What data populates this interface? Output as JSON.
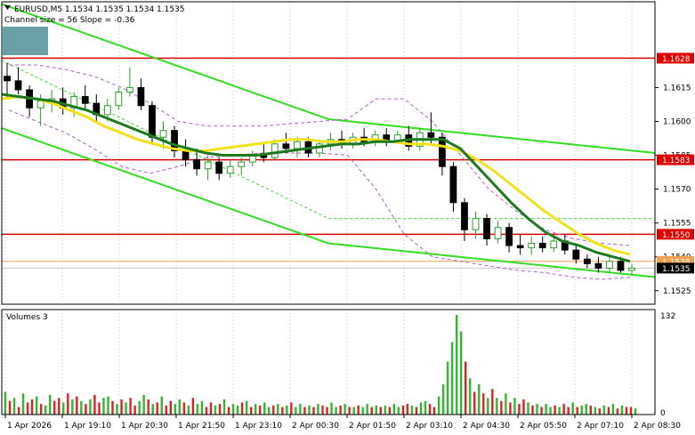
{
  "header": {
    "symbol_line": "EURUSD,M5  1.1534 1.1535 1.1534 1.1535",
    "indicator_line": "Channel size = 56 Slope = -0.36",
    "volumes_label": "Volumes 3"
  },
  "colors": {
    "bull": "#2f9e2f",
    "bear": "#000000",
    "ma_fast": "#1e7a1e",
    "ma_slow": "#f2e21a",
    "channel": "#33dd22",
    "bands": "#b060d0",
    "level": "#dd0000",
    "bid": "#f0a050",
    "vol_up": "#2fb82f",
    "vol_down": "#e02020"
  },
  "chart_data": [
    {
      "type": "candlestick",
      "symbol": "EURUSD",
      "timeframe": "M5",
      "ylim": [
        1.1519,
        1.1653
      ],
      "yticks": [
        "1.1615",
        "1.1600",
        "1.1585",
        "1.1570",
        "1.1555",
        "1.1540",
        "1.1525"
      ],
      "xticks": [
        "1 Apr 2026",
        "1 Apr 19:10",
        "1 Apr 20:30",
        "1 Apr 21:50",
        "1 Apr 23:10",
        "2 Apr 00:30",
        "2 Apr 01:50",
        "2 Apr 03:10",
        "2 Apr 04:30",
        "2 Apr 05:50",
        "2 Apr 07:10",
        "2 Apr 08:30"
      ],
      "levels": [
        {
          "price": 1.1628,
          "label": "1.1628"
        },
        {
          "price": 1.1583,
          "label": "1.1583"
        },
        {
          "price": 1.155,
          "label": "1.1550"
        },
        {
          "price": 1.1538,
          "label": "1.1538"
        },
        {
          "price": 1.1535,
          "label": "1.1535"
        }
      ],
      "ohlc": [
        [
          1.162,
          1.1626,
          1.161,
          1.1618
        ],
        [
          1.1618,
          1.1624,
          1.1612,
          1.1614
        ],
        [
          1.1614,
          1.1616,
          1.1602,
          1.1606
        ],
        [
          1.1606,
          1.1612,
          1.1598,
          1.1609
        ],
        [
          1.1609,
          1.1614,
          1.1604,
          1.161
        ],
        [
          1.161,
          1.1615,
          1.1603,
          1.1606
        ],
        [
          1.1606,
          1.1613,
          1.1602,
          1.1611
        ],
        [
          1.1611,
          1.1616,
          1.1605,
          1.1608
        ],
        [
          1.1608,
          1.1612,
          1.16,
          1.1603
        ],
        [
          1.1603,
          1.161,
          1.16,
          1.1607
        ],
        [
          1.1607,
          1.1615,
          1.1605,
          1.1613
        ],
        [
          1.1613,
          1.1624,
          1.1611,
          1.1615
        ],
        [
          1.1615,
          1.1619,
          1.1605,
          1.1607
        ],
        [
          1.1607,
          1.1609,
          1.159,
          1.1593
        ],
        [
          1.1593,
          1.16,
          1.1588,
          1.1596
        ],
        [
          1.1596,
          1.1598,
          1.1584,
          1.1587
        ],
        [
          1.1587,
          1.1592,
          1.158,
          1.1583
        ],
        [
          1.1583,
          1.1588,
          1.1576,
          1.1579
        ],
        [
          1.1579,
          1.1585,
          1.1574,
          1.1582
        ],
        [
          1.1582,
          1.1584,
          1.1574,
          1.1577
        ],
        [
          1.1577,
          1.1583,
          1.1575,
          1.158
        ],
        [
          1.158,
          1.1584,
          1.1576,
          1.1582
        ],
        [
          1.1582,
          1.1587,
          1.158,
          1.1585
        ],
        [
          1.1585,
          1.159,
          1.1582,
          1.1584
        ],
        [
          1.1584,
          1.1592,
          1.1583,
          1.159
        ],
        [
          1.159,
          1.1595,
          1.1586,
          1.1588
        ],
        [
          1.1588,
          1.1593,
          1.1584,
          1.1591
        ],
        [
          1.1591,
          1.1593,
          1.1584,
          1.1586
        ],
        [
          1.1586,
          1.1592,
          1.1584,
          1.159
        ],
        [
          1.159,
          1.1595,
          1.1587,
          1.1592
        ],
        [
          1.1592,
          1.1596,
          1.1588,
          1.159
        ],
        [
          1.159,
          1.1595,
          1.1588,
          1.1593
        ],
        [
          1.1593,
          1.1597,
          1.1589,
          1.1591
        ],
        [
          1.1591,
          1.1596,
          1.1589,
          1.1594
        ],
        [
          1.1594,
          1.1597,
          1.1589,
          1.1591
        ],
        [
          1.1591,
          1.1596,
          1.159,
          1.1594
        ],
        [
          1.1594,
          1.1598,
          1.1587,
          1.1589
        ],
        [
          1.1589,
          1.1597,
          1.1587,
          1.1595
        ],
        [
          1.1595,
          1.1604,
          1.159,
          1.1593
        ],
        [
          1.1593,
          1.1595,
          1.1576,
          1.158
        ],
        [
          1.158,
          1.1582,
          1.156,
          1.1564
        ],
        [
          1.1564,
          1.1566,
          1.1547,
          1.1552
        ],
        [
          1.1552,
          1.156,
          1.1548,
          1.1557
        ],
        [
          1.1557,
          1.1559,
          1.1545,
          1.1548
        ],
        [
          1.1548,
          1.1556,
          1.1546,
          1.1553
        ],
        [
          1.1553,
          1.1555,
          1.1542,
          1.1545
        ],
        [
          1.1545,
          1.155,
          1.1541,
          1.1544
        ],
        [
          1.1544,
          1.1549,
          1.1541,
          1.1546
        ],
        [
          1.1546,
          1.1549,
          1.1542,
          1.1544
        ],
        [
          1.1544,
          1.1549,
          1.1542,
          1.1547
        ],
        [
          1.1547,
          1.155,
          1.1541,
          1.1543
        ],
        [
          1.1543,
          1.1546,
          1.1537,
          1.1539
        ],
        [
          1.1539,
          1.1541,
          1.1535,
          1.1537
        ],
        [
          1.1537,
          1.154,
          1.1533,
          1.1535
        ],
        [
          1.1535,
          1.154,
          1.1533,
          1.1538
        ],
        [
          1.1538,
          1.154,
          1.1533,
          1.1534
        ],
        [
          1.1534,
          1.1537,
          1.1532,
          1.1535
        ]
      ],
      "ma_fast": [
        1.1612,
        1.1611,
        1.161,
        1.1609,
        1.1607,
        1.1605,
        1.1602,
        1.1599,
        1.1596,
        1.1593,
        1.159,
        1.1588,
        1.1586,
        1.1585,
        1.1585,
        1.1585,
        1.1586,
        1.1587,
        1.1588,
        1.1589,
        1.159,
        1.159,
        1.1591,
        1.1591,
        1.1592,
        1.1592,
        1.1592,
        1.1588,
        1.158,
        1.1572,
        1.1564,
        1.1557,
        1.1551,
        1.1547,
        1.1545,
        1.1542,
        1.154,
        1.1538
      ],
      "ma_slow": [
        1.161,
        1.1611,
        1.161,
        1.1608,
        1.1605,
        1.1602,
        1.1598,
        1.1595,
        1.1592,
        1.159,
        1.1588,
        1.1587,
        1.1587,
        1.1588,
        1.1589,
        1.159,
        1.1591,
        1.1592,
        1.1592,
        1.1591,
        1.1591,
        1.1592,
        1.1592,
        1.1591,
        1.159,
        1.159,
        1.1589,
        1.1587,
        1.1583,
        1.1578,
        1.1572,
        1.1566,
        1.156,
        1.1555,
        1.155,
        1.1546,
        1.1543,
        1.1541
      ],
      "channel": {
        "upper": [
          1.1652,
          1.1601,
          1.1586
        ],
        "lower": [
          1.1597,
          1.1546,
          1.1531
        ],
        "middle": [
          1.1627,
          1.1557,
          1.1557
        ]
      },
      "bands": {
        "upper": [
          1.1625,
          1.1625,
          1.1623,
          1.162,
          1.1615,
          1.1608,
          1.16,
          1.1598,
          1.1598,
          1.1598,
          1.1599,
          1.16,
          1.1601,
          1.161,
          1.161,
          1.16,
          1.1585,
          1.157,
          1.156,
          1.1552,
          1.1548,
          1.1546,
          1.1545
        ],
        "lower": [
          1.1605,
          1.16,
          1.1595,
          1.1588,
          1.158,
          1.1577,
          1.158,
          1.1584,
          1.1585,
          1.1586,
          1.1586,
          1.1586,
          1.1585,
          1.157,
          1.155,
          1.154,
          1.1538,
          1.1536,
          1.1534,
          1.1533,
          1.1531,
          1.153,
          1.1531
        ]
      }
    },
    {
      "type": "bar",
      "name": "Volumes 3",
      "ylim": [
        0,
        132
      ],
      "yticks": [
        "132",
        "0"
      ],
      "values": [
        30,
        18,
        22,
        10,
        28,
        16,
        20,
        24,
        14,
        12,
        26,
        18,
        22,
        16,
        28,
        20,
        24,
        18,
        14,
        20,
        26,
        16,
        22,
        24,
        18,
        14,
        20,
        16,
        22,
        12,
        18,
        26,
        20,
        14,
        16,
        24,
        12,
        18,
        14,
        20,
        16,
        12,
        22,
        14,
        18,
        10,
        16,
        12,
        14,
        20,
        10,
        14,
        12,
        16,
        18,
        10,
        14,
        12,
        16,
        10,
        12,
        14,
        10,
        12,
        16,
        10,
        14,
        10,
        12,
        10,
        14,
        12,
        10,
        16,
        10,
        12,
        14,
        10,
        10,
        12,
        10,
        14,
        10,
        12,
        10,
        12,
        10,
        14,
        10,
        12,
        14,
        12,
        10,
        16,
        18,
        14,
        10,
        24,
        40,
        70,
        96,
        132,
        110,
        70,
        48,
        30,
        40,
        28,
        22,
        34,
        22,
        18,
        28,
        16,
        22,
        14,
        20,
        16,
        12,
        14,
        10,
        14,
        10,
        12,
        10,
        14,
        10,
        16,
        10,
        12,
        14,
        12,
        10,
        8,
        12,
        10,
        14,
        8,
        12,
        10,
        10,
        8
      ],
      "up": [
        1,
        0,
        1,
        0,
        1,
        0,
        0,
        1,
        0,
        1,
        1,
        0,
        0,
        1,
        0,
        1,
        0,
        1,
        0,
        1,
        0,
        0,
        1,
        1,
        0,
        1,
        0,
        1,
        0,
        0,
        1,
        1,
        0,
        1,
        0,
        1,
        0,
        0,
        1,
        1,
        0,
        1,
        0,
        1,
        1,
        0,
        0,
        1,
        0,
        1,
        0,
        1,
        1,
        0,
        1,
        0,
        1,
        0,
        1,
        1,
        0,
        1,
        0,
        1,
        0,
        1,
        1,
        0,
        1,
        0,
        1,
        0,
        0,
        1,
        1,
        0,
        1,
        0,
        1,
        0,
        1,
        1,
        0,
        1,
        0,
        1,
        0,
        1,
        1,
        0,
        0,
        1,
        0,
        1,
        1,
        0,
        0,
        1,
        1,
        1,
        1,
        1,
        1,
        0,
        1,
        0,
        1,
        0,
        1,
        0,
        1,
        0,
        1,
        0,
        1,
        0,
        0,
        1,
        0,
        1,
        0,
        1,
        1,
        0,
        1,
        0,
        0,
        1,
        0,
        1,
        1,
        0,
        1,
        0,
        1,
        0,
        1,
        0,
        1,
        0,
        0,
        1
      ]
    }
  ]
}
